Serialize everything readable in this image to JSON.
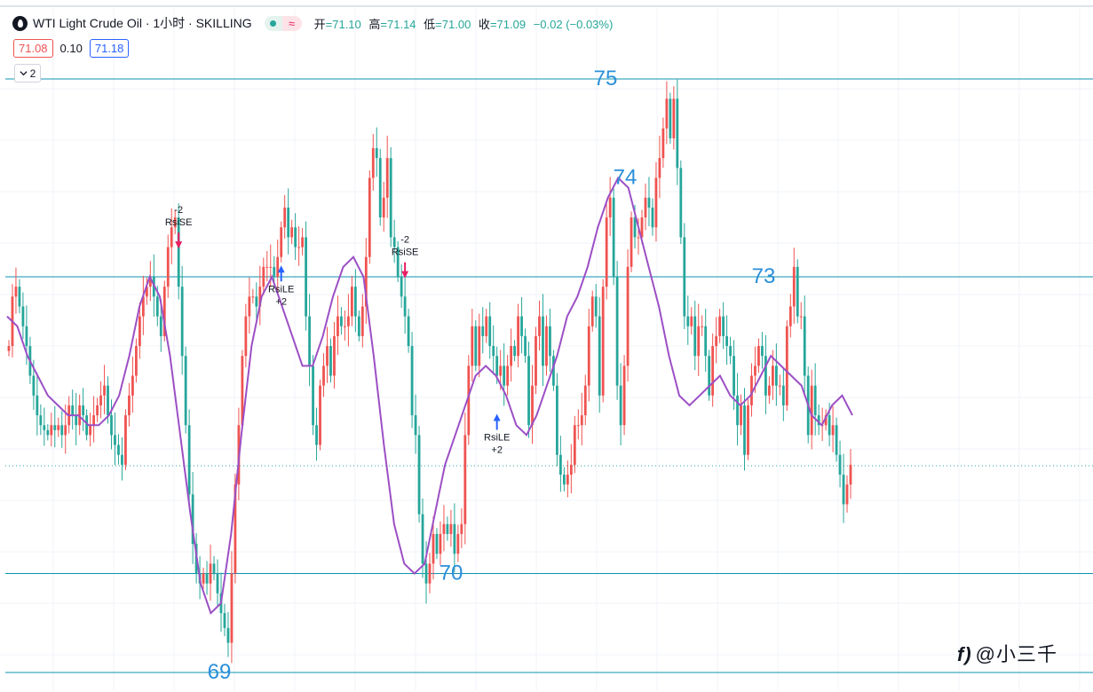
{
  "header": {
    "symbol_title": "WTI Light Crude Oil · 1小时 · SKILLING",
    "status_wave": "≈",
    "ohlc": [
      {
        "key": "开",
        "value": "=71.10"
      },
      {
        "key": "高",
        "value": "=71.14"
      },
      {
        "key": "低",
        "value": "=71.00"
      },
      {
        "key": "收",
        "value": "=71.09"
      }
    ],
    "change": "−0.02 (−0.03%)"
  },
  "quote": {
    "bid": "71.08",
    "spread": "0.10",
    "ask": "71.18"
  },
  "collapse_button": {
    "icon": "chevron-down-icon",
    "label": "2"
  },
  "watermark": {
    "logo": "f)",
    "text": "@小三千"
  },
  "colors": {
    "up": "#ef5350",
    "down": "#26a69a",
    "rsi": "#9c4fc5",
    "level_line": "#0e93b0",
    "level_text": "#2b8fd9",
    "buy_marker": "#2962ff",
    "sell_marker": "#e91e63"
  },
  "chart_data": {
    "type": "candlestick",
    "symbol": "WTI Light Crude Oil",
    "interval": "1小时",
    "y_range": [
      68.95,
      75.3
    ],
    "last_price": 71.09,
    "levels": [
      {
        "value": 75,
        "label": "75"
      },
      {
        "value": 74,
        "label": "74"
      },
      {
        "value": 73,
        "label": "73"
      },
      {
        "value": 70,
        "label": "70"
      },
      {
        "value": 69,
        "label": "69"
      }
    ],
    "horizontal_lines": [
      75,
      73,
      70,
      69
    ],
    "series": [
      {
        "name": "close",
        "values": [
          72.3,
          72.8,
          72.9,
          72.7,
          72.5,
          72.3,
          72.0,
          71.8,
          71.6,
          71.5,
          71.45,
          71.4,
          71.5,
          71.45,
          71.5,
          71.4,
          71.5,
          71.7,
          71.6,
          71.5,
          71.7,
          71.6,
          71.4,
          71.5,
          71.6,
          71.7,
          71.8,
          71.9,
          71.6,
          71.4,
          71.3,
          71.2,
          71.1,
          71.6,
          71.8,
          72.0,
          72.3,
          72.6,
          72.8,
          72.9,
          73.0,
          72.8,
          72.6,
          72.4,
          72.9,
          73.3,
          73.5,
          73.6,
          72.9,
          72.2,
          71.5,
          70.8,
          70.3,
          70.0,
          69.9,
          70.0,
          69.9,
          70.1,
          70.0,
          69.8,
          69.6,
          69.45,
          69.3,
          70.0,
          70.9,
          71.5,
          72.2,
          72.6,
          72.8,
          72.8,
          72.7,
          72.9,
          73.1,
          73.1,
          73.1,
          73.0,
          73.2,
          73.5,
          73.7,
          73.4,
          73.5,
          73.3,
          73.3,
          73.4,
          72.6,
          72.1,
          71.5,
          71.3,
          71.9,
          72.1,
          72.3,
          72.0,
          72.4,
          72.6,
          72.5,
          72.5,
          72.6,
          72.9,
          72.6,
          72.4,
          72.7,
          73.2,
          74.0,
          74.3,
          74.2,
          73.6,
          73.8,
          74.2,
          73.4,
          73.3,
          73.0,
          72.8,
          72.6,
          72.3,
          71.6,
          71.4,
          70.6,
          70.1,
          69.9,
          70.1,
          70.4,
          70.2,
          70.4,
          70.5,
          70.4,
          70.5,
          70.2,
          70.4,
          70.5,
          71.4,
          72.1,
          72.5,
          72.1,
          72.5,
          72.4,
          72.6,
          72.3,
          72.2,
          72.0,
          72.1,
          71.9,
          72.1,
          72.3,
          72.2,
          72.6,
          72.4,
          72.2,
          71.5,
          71.9,
          72.4,
          72.6,
          72.1,
          72.5,
          72.2,
          71.9,
          71.2,
          71.0,
          70.9,
          71.0,
          71.1,
          71.5,
          71.5,
          71.6,
          71.9,
          72.5,
          72.8,
          72.6,
          71.8,
          72.9,
          73.6,
          73.8,
          73.0,
          71.9,
          71.5,
          72.1,
          73.1,
          73.6,
          73.4,
          73.4,
          73.6,
          73.8,
          73.7,
          73.5,
          74.0,
          74.2,
          74.5,
          74.8,
          74.4,
          74.8,
          74.1,
          73.4,
          72.6,
          72.5,
          72.6,
          72.2,
          72.5,
          72.5,
          72.2,
          71.8,
          72.3,
          72.4,
          72.6,
          72.4,
          72.3,
          72.2,
          71.8,
          71.5,
          71.7,
          71.2,
          71.7,
          72.0,
          72.1,
          72.3,
          72.2,
          71.8,
          71.9,
          72.1,
          71.9,
          71.9,
          71.7,
          72.5,
          72.7,
          73.1,
          72.6,
          72.6,
          72.0,
          71.4,
          71.9,
          71.6,
          71.5,
          71.5,
          71.6,
          71.4,
          71.5,
          71.2,
          71.0,
          70.7,
          70.9,
          71.1
        ]
      },
      {
        "name": "RSI overlay",
        "values": [
          72.6,
          72.5,
          72.2,
          72.0,
          71.8,
          71.7,
          71.6,
          71.6,
          71.5,
          71.5,
          71.6,
          71.8,
          72.2,
          72.7,
          73.0,
          72.8,
          72.2,
          71.4,
          70.6,
          69.9,
          69.6,
          69.7,
          70.4,
          71.4,
          72.3,
          72.8,
          73.0,
          72.7,
          72.4,
          72.1,
          72.1,
          72.4,
          72.8,
          73.1,
          73.2,
          73.0,
          72.2,
          71.3,
          70.5,
          70.1,
          70.0,
          70.1,
          70.6,
          71.1,
          71.4,
          71.7,
          72.0,
          72.1,
          72.0,
          71.8,
          71.5,
          71.4,
          71.6,
          71.9,
          72.2,
          72.6,
          72.8,
          73.1,
          73.5,
          73.8,
          74.0,
          73.9,
          73.5,
          73.1,
          72.7,
          72.2,
          71.8,
          71.7,
          71.8,
          71.9,
          72.0,
          71.8,
          71.7,
          71.8,
          72.0,
          72.2,
          72.1,
          72.0,
          71.9,
          71.6,
          71.5,
          71.7,
          71.8,
          71.6
        ]
      }
    ],
    "signals": [
      {
        "type": "sell",
        "label": "RsiSE",
        "qty": "-2",
        "index": 48
      },
      {
        "type": "sell",
        "label": "RsiSE",
        "qty": "-2",
        "index": 112
      },
      {
        "type": "buy",
        "label": "RsiLE",
        "qty": "+2",
        "index": 77
      },
      {
        "type": "buy",
        "label": "RsiLE",
        "qty": "+2",
        "index": 138
      }
    ]
  }
}
